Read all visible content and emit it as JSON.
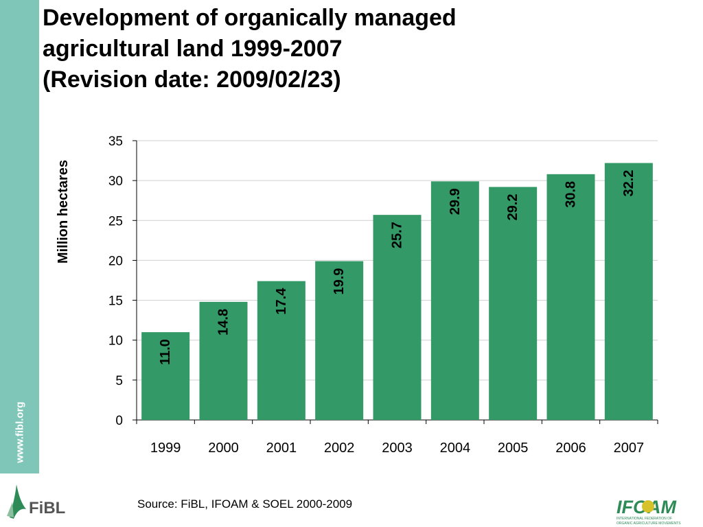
{
  "page": {
    "title_lines": [
      "Development of organically managed",
      "agricultural land 1999-2007",
      "(Revision date: 2009/02/23)"
    ],
    "side_url": "www.fibl.org",
    "source": "Source: FiBL, IFOAM & SOEL  2000-2009",
    "logos": {
      "fibl": "FiBL",
      "ifoam": "IFOAM",
      "ifoam_tagline_1": "INTERNATIONAL FEDERATION OF",
      "ifoam_tagline_2": "ORGANIC AGRICULTURE MOVEMENTS"
    }
  },
  "colors": {
    "bar": "#339966",
    "sidebar": "#7fc6b8",
    "grid": "#cfcfcf",
    "logo_green": "#2e8b57",
    "ifoam_yellow": "#d6c22a"
  },
  "chart_data": {
    "type": "bar",
    "title": "",
    "xlabel": "",
    "ylabel": "Million hectares",
    "categories": [
      "1999",
      "2000",
      "2001",
      "2002",
      "2003",
      "2004",
      "2005",
      "2006",
      "2007"
    ],
    "values": [
      11.0,
      14.8,
      17.4,
      19.9,
      25.7,
      29.9,
      29.2,
      30.8,
      32.2
    ],
    "value_labels": [
      "11.0",
      "14.8",
      "17.4",
      "19.9",
      "25.7",
      "29.9",
      "29.2",
      "30.8",
      "32.2"
    ],
    "ylim": [
      0,
      35
    ],
    "yticks": [
      0,
      5,
      10,
      15,
      20,
      25,
      30,
      35
    ],
    "grid": true,
    "legend": "none"
  }
}
